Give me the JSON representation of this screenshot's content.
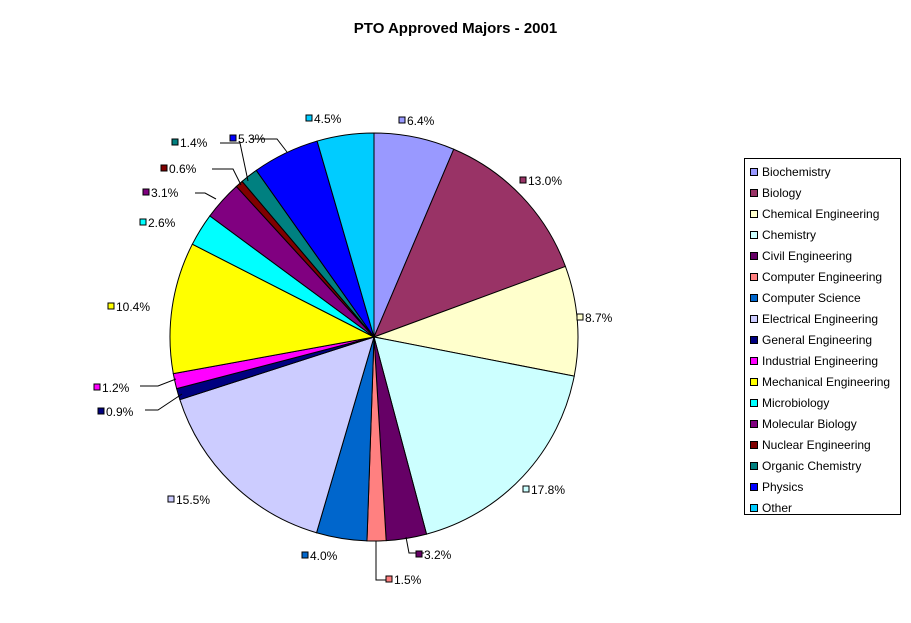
{
  "chart_data": {
    "type": "pie",
    "title": "PTO Approved Majors - 2001",
    "legend_position": "right",
    "slices": [
      {
        "label": "Biochemistry",
        "value": 6.4,
        "value_label": "6.4%",
        "color": "#9999FF"
      },
      {
        "label": "Biology",
        "value": 13.0,
        "value_label": "13.0%",
        "color": "#993366"
      },
      {
        "label": "Chemical Engineering",
        "value": 8.7,
        "value_label": "8.7%",
        "color": "#FFFFCC"
      },
      {
        "label": "Chemistry",
        "value": 17.8,
        "value_label": "17.8%",
        "color": "#CCFFFF"
      },
      {
        "label": "Civil Engineering",
        "value": 3.2,
        "value_label": "3.2%",
        "color": "#660066"
      },
      {
        "label": "Computer Engineering",
        "value": 1.5,
        "value_label": "1.5%",
        "color": "#FF8080"
      },
      {
        "label": "Computer Science",
        "value": 4.0,
        "value_label": "4.0%",
        "color": "#0066CC"
      },
      {
        "label": "Electrical Engineering",
        "value": 15.5,
        "value_label": "15.5%",
        "color": "#CCCCFF"
      },
      {
        "label": "General Engineering",
        "value": 0.9,
        "value_label": "0.9%",
        "color": "#000080"
      },
      {
        "label": "Industrial Engineering",
        "value": 1.2,
        "value_label": "1.2%",
        "color": "#FF00FF"
      },
      {
        "label": "Mechanical Engineering",
        "value": 10.4,
        "value_label": "10.4%",
        "color": "#FFFF00"
      },
      {
        "label": "Microbiology",
        "value": 2.6,
        "value_label": "2.6%",
        "color": "#00FFFF"
      },
      {
        "label": "Molecular Biology",
        "value": 3.1,
        "value_label": "3.1%",
        "color": "#800080"
      },
      {
        "label": "Nuclear Engineering",
        "value": 0.6,
        "value_label": "0.6%",
        "color": "#800000"
      },
      {
        "label": "Organic Chemistry",
        "value": 1.4,
        "value_label": "1.4%",
        "color": "#008080"
      },
      {
        "label": "Physics",
        "value": 5.3,
        "value_label": "5.3%",
        "color": "#0000FF"
      },
      {
        "label": "Other",
        "value": 4.5,
        "value_label": "4.5%",
        "color": "#00CCFF"
      }
    ]
  }
}
